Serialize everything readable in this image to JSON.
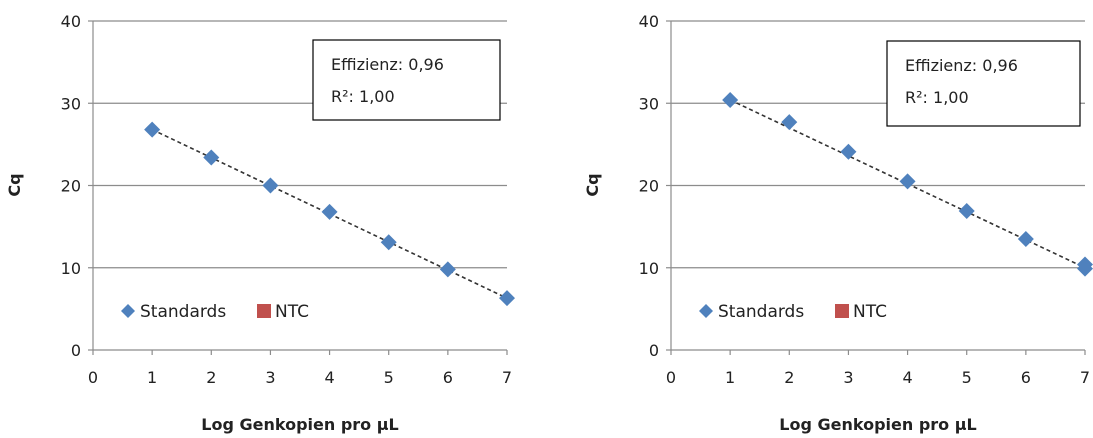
{
  "chart_data": [
    {
      "type": "scatter",
      "xlabel": "Log Genkopien pro µL",
      "ylabel": "Cq",
      "xlim": [
        0,
        7
      ],
      "ylim": [
        0,
        40
      ],
      "x_ticks": [
        "0",
        "1",
        "2",
        "3",
        "4",
        "5",
        "6",
        "7"
      ],
      "y_ticks": [
        "0",
        "10",
        "20",
        "30",
        "40"
      ],
      "grid": "horizontal",
      "legend_position": "bottom-left",
      "annotation": {
        "line1": "Effizienz: 0,96",
        "line2": "R²: 1,00"
      },
      "series": [
        {
          "name": "Standards",
          "color": "#4f81bd",
          "marker": "diamond",
          "x": [
            1,
            2,
            3,
            4,
            5,
            6,
            7
          ],
          "y": [
            26.8,
            23.4,
            20.0,
            16.8,
            13.1,
            9.8,
            6.3
          ]
        },
        {
          "name": "NTC",
          "color": "#c0504d",
          "marker": "square",
          "x": [],
          "y": []
        }
      ],
      "trendline": {
        "style": "dashed",
        "from": [
          1,
          26.8
        ],
        "to": [
          7,
          6.3
        ]
      }
    },
    {
      "type": "scatter",
      "xlabel": "Log Genkopien pro µL",
      "ylabel": "Cq",
      "xlim": [
        0,
        7
      ],
      "ylim": [
        0,
        40
      ],
      "x_ticks": [
        "0",
        "1",
        "2",
        "3",
        "4",
        "5",
        "6",
        "7"
      ],
      "y_ticks": [
        "0",
        "10",
        "20",
        "30",
        "40"
      ],
      "grid": "horizontal",
      "legend_position": "bottom-left",
      "annotation": {
        "line1": "Effizienz: 0,96",
        "line2": "R²: 1,00"
      },
      "series": [
        {
          "name": "Standards",
          "color": "#4f81bd",
          "marker": "diamond",
          "x": [
            1,
            2,
            3,
            4,
            5,
            6,
            7,
            7
          ],
          "y": [
            30.4,
            27.7,
            24.1,
            20.5,
            16.9,
            13.5,
            10.4,
            9.9
          ]
        },
        {
          "name": "NTC",
          "color": "#c0504d",
          "marker": "square",
          "x": [],
          "y": []
        }
      ],
      "trendline": {
        "style": "dashed",
        "from": [
          1,
          30.4
        ],
        "to": [
          7,
          10.0
        ]
      }
    }
  ]
}
